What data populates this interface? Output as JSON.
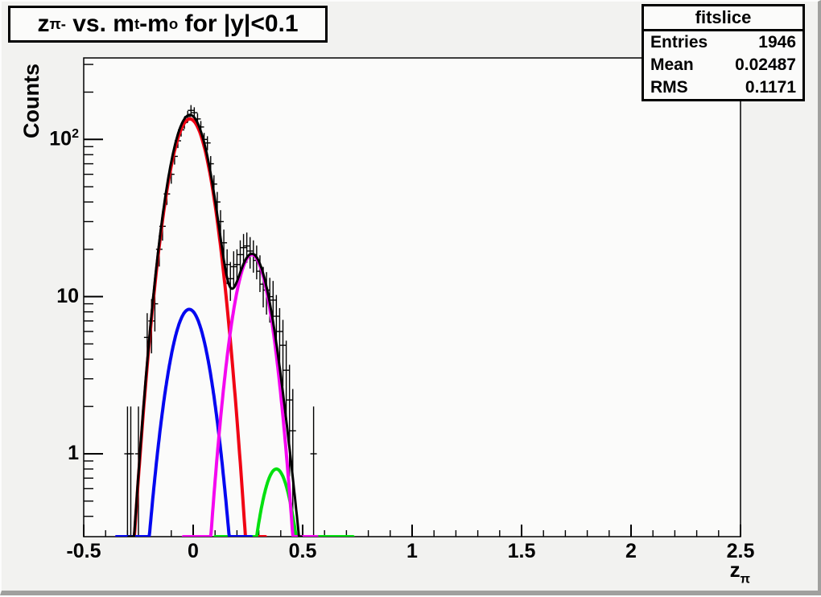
{
  "title": {
    "text_plain": "z_pi- vs. m_t-m_o for |y|<0.1",
    "segments": [
      {
        "t": "z"
      },
      {
        "s": "π-"
      },
      {
        "t": " vs. m"
      },
      {
        "s": "t"
      },
      {
        "t": "-m"
      },
      {
        "s": "o"
      },
      {
        "t": " for |y|<0.1"
      }
    ]
  },
  "stats": {
    "title": "fitslice",
    "rows": [
      {
        "label": "Entries",
        "value": "1946"
      },
      {
        "label": "Mean",
        "value": "0.02487"
      },
      {
        "label": "RMS",
        "value": "0.1171"
      }
    ]
  },
  "axes": {
    "y_title": "Counts",
    "x_title_segments": [
      {
        "t": "z"
      },
      {
        "s": "π"
      }
    ]
  },
  "chart_data": {
    "type": "line",
    "subtype": "errorbar-histogram-with-gaussian-fits",
    "title": "z_pi- vs. m_t-m_o for |y|<0.1",
    "xlabel": "z_pi",
    "ylabel": "Counts",
    "xlim": [
      -0.5,
      2.5
    ],
    "ylim": [
      0.297,
      330
    ],
    "yscale": "log",
    "grid": false,
    "x_ticks": [
      -0.5,
      0,
      0.5,
      1,
      1.5,
      2,
      2.5
    ],
    "x_tick_labels": [
      "-0.5",
      "0",
      "0.5",
      "1",
      "1.5",
      "2",
      "2.5"
    ],
    "x_minor_step": 0.1,
    "y_ticks": [
      1,
      10,
      100
    ],
    "y_tick_labels": [
      {
        "base": "1",
        "sup": ""
      },
      {
        "base": "10",
        "sup": ""
      },
      {
        "base": "10",
        "sup": "2"
      }
    ],
    "points_note": "black data points with sqrt(N) error bars, bin width ~0.015",
    "points": [
      [
        -0.3,
        1
      ],
      [
        -0.285,
        1
      ],
      [
        -0.25,
        1
      ],
      [
        -0.21,
        5.5
      ],
      [
        -0.19,
        7
      ],
      [
        -0.175,
        9
      ],
      [
        -0.155,
        20
      ],
      [
        -0.14,
        28
      ],
      [
        -0.12,
        45
      ],
      [
        -0.1,
        60
      ],
      [
        -0.085,
        78
      ],
      [
        -0.07,
        98
      ],
      [
        -0.055,
        115
      ],
      [
        -0.04,
        128
      ],
      [
        -0.025,
        140
      ],
      [
        -0.01,
        153
      ],
      [
        0.005,
        148
      ],
      [
        0.02,
        135
      ],
      [
        0.035,
        120
      ],
      [
        0.05,
        100
      ],
      [
        0.065,
        95
      ],
      [
        0.08,
        70
      ],
      [
        0.095,
        52
      ],
      [
        0.11,
        40
      ],
      [
        0.125,
        30
      ],
      [
        0.14,
        22
      ],
      [
        0.155,
        16
      ],
      [
        0.17,
        13
      ],
      [
        0.185,
        15.5
      ],
      [
        0.2,
        16
      ],
      [
        0.215,
        18.5
      ],
      [
        0.23,
        20.5
      ],
      [
        0.245,
        21
      ],
      [
        0.26,
        19.5
      ],
      [
        0.275,
        18.5
      ],
      [
        0.29,
        17
      ],
      [
        0.305,
        14.5
      ],
      [
        0.32,
        12
      ],
      [
        0.335,
        11
      ],
      [
        0.35,
        10
      ],
      [
        0.365,
        9.5
      ],
      [
        0.38,
        7.5
      ],
      [
        0.395,
        6
      ],
      [
        0.41,
        4.9
      ],
      [
        0.425,
        3.4
      ],
      [
        0.44,
        2.2
      ],
      [
        0.455,
        1.4
      ],
      [
        0.55,
        1
      ]
    ],
    "fits": [
      {
        "name": "gaussian-red",
        "color": "#f00414",
        "amp": 135,
        "mean": -0.015,
        "sigma": 0.0725,
        "range": [
          -0.35,
          0.33
        ],
        "width": 4
      },
      {
        "name": "gaussian-green",
        "color": "#04e010",
        "amp": 0.8,
        "mean": 0.38,
        "sigma": 0.064,
        "range": [
          0.1,
          0.73
        ],
        "width": 4
      },
      {
        "name": "gaussian-blue",
        "color": "#0408f0",
        "amp": 8.3,
        "mean": -0.018,
        "sigma": 0.0707,
        "range": [
          -0.35,
          0.265
        ],
        "width": 4
      },
      {
        "name": "gaussian-magenta",
        "color": "#f408f0",
        "amp": 18.5,
        "mean": 0.268,
        "sigma": 0.0652,
        "range": [
          -0.045,
          0.565
        ],
        "width": 4
      },
      {
        "name": "total-fit-black",
        "color": "#000000",
        "sum": true,
        "range": [
          -0.295,
          0.495
        ],
        "width": 3
      }
    ],
    "legend": null
  },
  "colors": {
    "canvas_bg": "#f2f2f0",
    "frame_bg": "#fbfbfa",
    "axis": "#000000",
    "data": "#000000"
  }
}
